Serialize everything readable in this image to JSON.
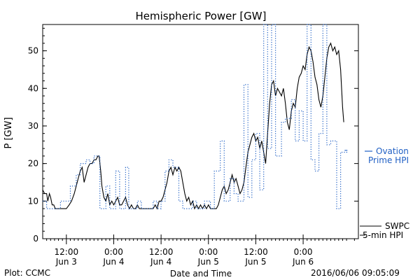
{
  "chart_data": {
    "type": "line",
    "title": "Hemispheric Power [GW]",
    "ylabel": "P [GW]",
    "xlabel": "Date and Time",
    "ylim": [
      0,
      57
    ],
    "yticks": [
      0,
      10,
      20,
      30,
      40,
      50
    ],
    "x_unit": "hours since Jun 3 00:00",
    "xlim": [
      6,
      86
    ],
    "xticks": [
      {
        "x": 12,
        "time": "12:00",
        "date": "Jun 3"
      },
      {
        "x": 24,
        "time": "0:00",
        "date": "Jun 4"
      },
      {
        "x": 36,
        "time": "12:00",
        "date": "Jun 4"
      },
      {
        "x": 48,
        "time": "0:00",
        "date": "Jun 5"
      },
      {
        "x": 60,
        "time": "12:00",
        "date": "Jun 5"
      },
      {
        "x": 72,
        "time": "0:00",
        "date": "Jun 6"
      }
    ],
    "grid": false,
    "series": [
      {
        "name": "SWPC",
        "style": "solid",
        "color": "#000000",
        "points": [
          [
            6.0,
            13
          ],
          [
            6.5,
            12
          ],
          [
            7.0,
            12
          ],
          [
            7.3,
            10
          ],
          [
            7.7,
            12
          ],
          [
            8.0,
            11
          ],
          [
            8.4,
            9
          ],
          [
            8.8,
            9
          ],
          [
            9.2,
            8
          ],
          [
            10,
            8
          ],
          [
            11,
            8
          ],
          [
            12,
            8
          ],
          [
            12.7,
            9
          ],
          [
            13.3,
            10
          ],
          [
            14,
            12
          ],
          [
            14.5,
            14
          ],
          [
            15,
            16
          ],
          [
            15.5,
            18
          ],
          [
            16,
            19
          ],
          [
            16.5,
            15
          ],
          [
            17,
            17
          ],
          [
            17.5,
            19
          ],
          [
            18,
            20
          ],
          [
            18.5,
            20
          ],
          [
            19,
            21
          ],
          [
            19.5,
            21
          ],
          [
            20,
            22
          ],
          [
            20.3,
            22
          ],
          [
            20.7,
            18
          ],
          [
            21,
            14
          ],
          [
            21.5,
            11
          ],
          [
            22,
            10
          ],
          [
            22.5,
            12
          ],
          [
            23,
            9
          ],
          [
            23.5,
            10
          ],
          [
            24,
            9
          ],
          [
            24.5,
            10
          ],
          [
            25,
            11
          ],
          [
            25.5,
            9
          ],
          [
            26,
            9
          ],
          [
            26.5,
            10
          ],
          [
            27,
            11
          ],
          [
            27.5,
            9
          ],
          [
            28,
            8
          ],
          [
            28.5,
            9
          ],
          [
            29,
            8
          ],
          [
            29.5,
            8
          ],
          [
            30,
            9
          ],
          [
            30.5,
            8
          ],
          [
            31,
            8
          ],
          [
            32,
            8
          ],
          [
            33,
            8
          ],
          [
            34,
            8
          ],
          [
            34.5,
            9
          ],
          [
            35,
            8
          ],
          [
            35.5,
            10
          ],
          [
            36,
            10
          ],
          [
            36.5,
            11
          ],
          [
            37,
            13
          ],
          [
            37.5,
            15
          ],
          [
            38,
            18
          ],
          [
            38.5,
            19
          ],
          [
            39,
            17
          ],
          [
            39.5,
            19
          ],
          [
            40,
            18
          ],
          [
            40.5,
            19
          ],
          [
            41,
            18
          ],
          [
            41.5,
            15
          ],
          [
            42,
            12
          ],
          [
            42.5,
            10
          ],
          [
            43,
            11
          ],
          [
            43.5,
            9
          ],
          [
            44,
            10
          ],
          [
            44.5,
            8
          ],
          [
            45,
            9
          ],
          [
            45.5,
            8
          ],
          [
            46,
            9
          ],
          [
            46.5,
            8
          ],
          [
            47,
            9
          ],
          [
            47.5,
            8
          ],
          [
            48,
            9
          ],
          [
            48.5,
            8
          ],
          [
            49,
            8
          ],
          [
            50,
            8
          ],
          [
            50.5,
            9
          ],
          [
            51,
            11
          ],
          [
            51.5,
            13
          ],
          [
            52,
            14
          ],
          [
            52.5,
            12
          ],
          [
            53,
            13
          ],
          [
            53.5,
            15
          ],
          [
            54,
            17
          ],
          [
            54.5,
            15
          ],
          [
            55,
            16
          ],
          [
            55.5,
            14
          ],
          [
            56,
            12
          ],
          [
            56.5,
            13
          ],
          [
            57,
            15
          ],
          [
            57.5,
            19
          ],
          [
            58,
            23
          ],
          [
            58.5,
            25
          ],
          [
            59,
            27
          ],
          [
            59.5,
            28
          ],
          [
            60,
            26
          ],
          [
            60.5,
            27
          ],
          [
            61,
            24
          ],
          [
            61.5,
            26
          ],
          [
            62,
            23
          ],
          [
            62.5,
            20
          ],
          [
            63,
            28
          ],
          [
            63.5,
            36
          ],
          [
            64,
            41
          ],
          [
            64.5,
            42
          ],
          [
            65,
            38
          ],
          [
            65.5,
            40
          ],
          [
            66,
            39
          ],
          [
            66.5,
            38
          ],
          [
            67,
            40
          ],
          [
            67.5,
            36
          ],
          [
            68,
            31
          ],
          [
            68.5,
            29
          ],
          [
            69,
            34
          ],
          [
            69.5,
            36
          ],
          [
            70,
            35
          ],
          [
            70.5,
            40
          ],
          [
            71,
            43
          ],
          [
            71.5,
            44
          ],
          [
            72,
            46
          ],
          [
            72.5,
            45
          ],
          [
            73,
            49
          ],
          [
            73.5,
            51
          ],
          [
            74,
            50
          ],
          [
            74.5,
            47
          ],
          [
            75,
            43
          ],
          [
            75.5,
            41
          ],
          [
            76,
            37
          ],
          [
            76.5,
            35
          ],
          [
            77,
            38
          ],
          [
            77.5,
            43
          ],
          [
            78,
            48
          ],
          [
            78.5,
            51
          ],
          [
            79,
            52
          ],
          [
            79.5,
            50
          ],
          [
            80,
            51
          ],
          [
            80.5,
            49
          ],
          [
            81,
            50
          ],
          [
            81.5,
            45
          ],
          [
            82,
            35
          ],
          [
            82.3,
            31
          ]
        ]
      },
      {
        "name": "5-min HPI",
        "style": "dotted",
        "color": "#1f5fc4",
        "points": [
          [
            6.0,
            10
          ],
          [
            7.0,
            10
          ],
          [
            7.0,
            8
          ],
          [
            10.5,
            8
          ],
          [
            10.5,
            10
          ],
          [
            13.0,
            10
          ],
          [
            13.0,
            14
          ],
          [
            14.5,
            14
          ],
          [
            14.5,
            17
          ],
          [
            15.5,
            17
          ],
          [
            15.5,
            20
          ],
          [
            17.0,
            20
          ],
          [
            17.0,
            21
          ],
          [
            18.0,
            21
          ],
          [
            18.0,
            20
          ],
          [
            19.0,
            20
          ],
          [
            19.0,
            22
          ],
          [
            20.5,
            22
          ],
          [
            20.5,
            8
          ],
          [
            22.0,
            8
          ],
          [
            22.0,
            14
          ],
          [
            23.0,
            14
          ],
          [
            23.0,
            8
          ],
          [
            24.5,
            8
          ],
          [
            24.5,
            18
          ],
          [
            25.5,
            18
          ],
          [
            25.5,
            8
          ],
          [
            27.0,
            8
          ],
          [
            27.0,
            19
          ],
          [
            27.8,
            19
          ],
          [
            27.8,
            8
          ],
          [
            30.0,
            8
          ],
          [
            30.0,
            10
          ],
          [
            31.0,
            10
          ],
          [
            31.0,
            8
          ],
          [
            34.0,
            8
          ],
          [
            34.0,
            10
          ],
          [
            35.0,
            10
          ],
          [
            35.0,
            8
          ],
          [
            36.0,
            8
          ],
          [
            36.0,
            10
          ],
          [
            37.0,
            10
          ],
          [
            37.0,
            18
          ],
          [
            38.0,
            18
          ],
          [
            38.0,
            21
          ],
          [
            39.0,
            21
          ],
          [
            39.0,
            19
          ],
          [
            40.5,
            19
          ],
          [
            40.5,
            10
          ],
          [
            41.5,
            10
          ],
          [
            41.5,
            8
          ],
          [
            44.0,
            8
          ],
          [
            44.0,
            10
          ],
          [
            45.0,
            10
          ],
          [
            45.0,
            8
          ],
          [
            47.0,
            8
          ],
          [
            47.0,
            10
          ],
          [
            48.5,
            10
          ],
          [
            48.5,
            8
          ],
          [
            49.5,
            8
          ],
          [
            49.5,
            18
          ],
          [
            51.0,
            18
          ],
          [
            51.0,
            26
          ],
          [
            52.0,
            26
          ],
          [
            52.0,
            10
          ],
          [
            53.5,
            10
          ],
          [
            53.5,
            16
          ],
          [
            54.5,
            16
          ],
          [
            54.5,
            12
          ],
          [
            55.5,
            12
          ],
          [
            55.5,
            10
          ],
          [
            57.0,
            10
          ],
          [
            57.0,
            41
          ],
          [
            58.0,
            41
          ],
          [
            58.0,
            11
          ],
          [
            59.0,
            11
          ],
          [
            59.0,
            21
          ],
          [
            60.0,
            21
          ],
          [
            60.0,
            28
          ],
          [
            61.0,
            28
          ],
          [
            61.0,
            13
          ],
          [
            62.0,
            13
          ],
          [
            62.0,
            57
          ],
          [
            63.0,
            57
          ],
          [
            63.0,
            24
          ],
          [
            64.0,
            24
          ],
          [
            64.0,
            57
          ],
          [
            65.0,
            57
          ],
          [
            65.0,
            22
          ],
          [
            66.5,
            22
          ],
          [
            66.5,
            31
          ],
          [
            67.5,
            31
          ],
          [
            67.5,
            32
          ],
          [
            69.0,
            32
          ],
          [
            69.0,
            37
          ],
          [
            70.0,
            37
          ],
          [
            70.0,
            26
          ],
          [
            71.0,
            26
          ],
          [
            71.0,
            34
          ],
          [
            72.0,
            34
          ],
          [
            72.0,
            26
          ],
          [
            73.0,
            26
          ],
          [
            73.0,
            57
          ],
          [
            74.0,
            57
          ],
          [
            74.0,
            21
          ],
          [
            75.0,
            21
          ],
          [
            75.0,
            18
          ],
          [
            76.0,
            18
          ],
          [
            76.0,
            28
          ],
          [
            77.0,
            28
          ],
          [
            77.0,
            57
          ],
          [
            78.0,
            57
          ],
          [
            78.0,
            25
          ],
          [
            79.0,
            25
          ],
          [
            79.0,
            26
          ],
          [
            80.5,
            26
          ],
          [
            80.5,
            8
          ],
          [
            81.5,
            8
          ],
          [
            81.5,
            23
          ],
          [
            83.5,
            23
          ]
        ]
      },
      {
        "name": "Ovation Prime HPI",
        "style": "dashed",
        "color": "#1f5fc4",
        "points": [
          [
            82.5,
            23.5
          ],
          [
            83.5,
            23.5
          ]
        ]
      }
    ]
  },
  "legend": {
    "ovation_line1": "Ovation",
    "ovation_line2": "Prime HPI",
    "swpc": "SWPC",
    "hpi": "5-min HPI"
  },
  "footer": {
    "plot_credit": "Plot: CCMC",
    "timestamp": "2016/06/06 09:05:09"
  }
}
